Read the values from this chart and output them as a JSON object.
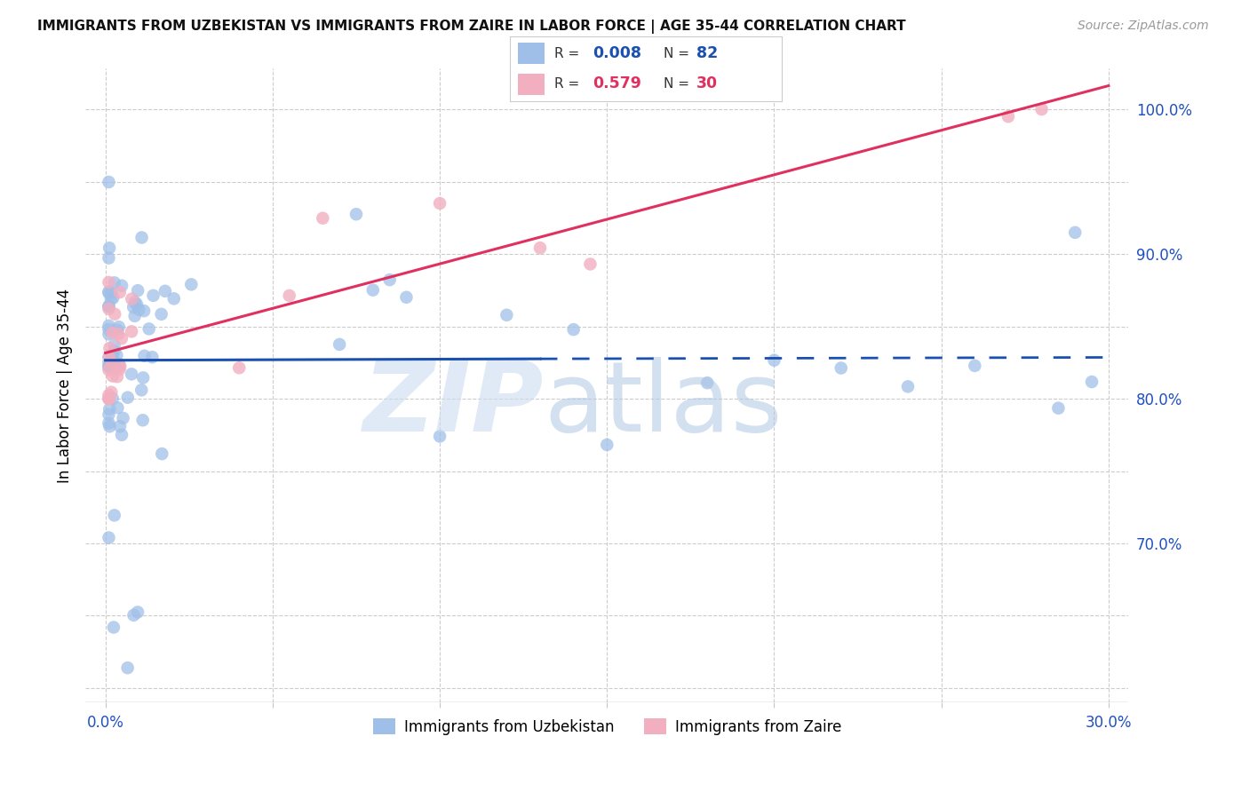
{
  "title": "IMMIGRANTS FROM UZBEKISTAN VS IMMIGRANTS FROM ZAIRE IN LABOR FORCE | AGE 35-44 CORRELATION CHART",
  "source": "Source: ZipAtlas.com",
  "ylabel": "In Labor Force | Age 35-44",
  "uzbekistan_color": "#a0bfe8",
  "zaire_color": "#f2afc0",
  "uzbekistan_line_color": "#1a50b0",
  "zaire_line_color": "#e03060",
  "legend_r_uz": "0.008",
  "legend_n_uz": "82",
  "legend_r_zr": "0.579",
  "legend_n_zr": "30"
}
